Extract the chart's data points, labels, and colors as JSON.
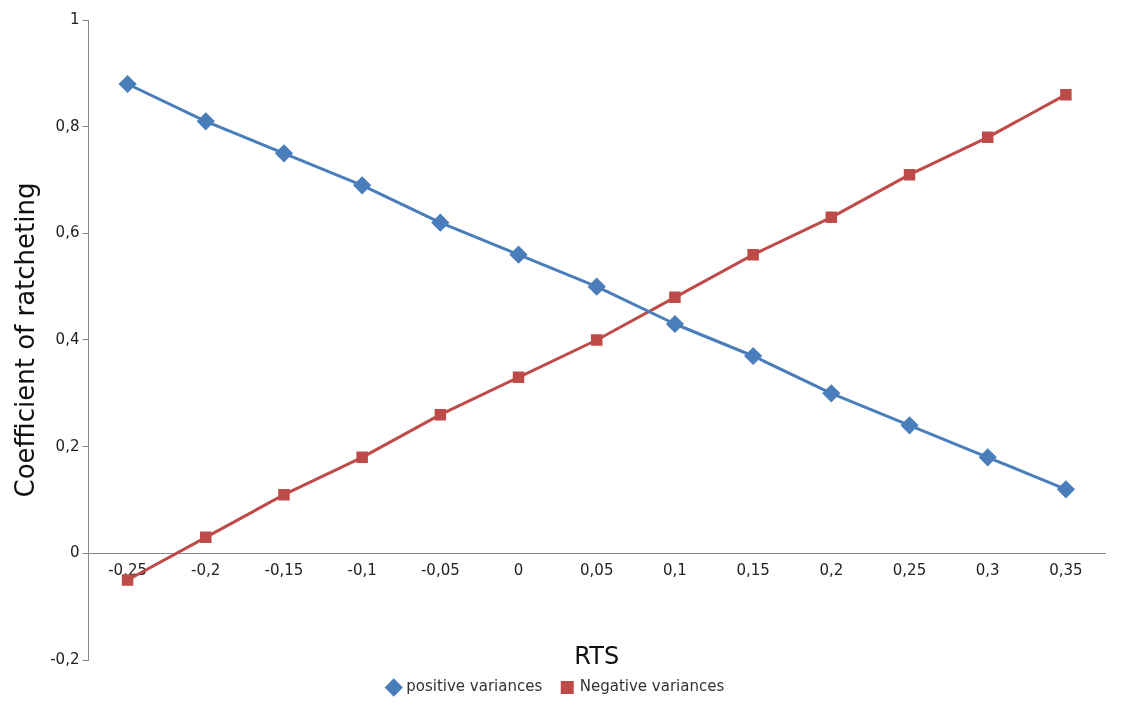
{
  "chart_data": {
    "type": "line",
    "xlabel": "RTS",
    "ylabel": "Coefficient of ratcheting",
    "categories": [
      "-0,25",
      "-0,2",
      "-0,15",
      "-0,1",
      "-0,05",
      "0",
      "0,05",
      "0,1",
      "0,15",
      "0,2",
      "0,25",
      "0,3",
      "0,35"
    ],
    "series": [
      {
        "name": "positive variances",
        "color": "#4a7ebb",
        "marker": "diamond",
        "values": [
          0.88,
          0.81,
          0.75,
          0.69,
          0.62,
          0.56,
          0.5,
          0.43,
          0.37,
          0.3,
          0.24,
          0.18,
          0.12
        ]
      },
      {
        "name": "Negative variances",
        "color": "#be4b48",
        "marker": "square",
        "values": [
          -0.05,
          0.03,
          0.11,
          0.18,
          0.26,
          0.33,
          0.4,
          0.48,
          0.56,
          0.63,
          0.71,
          0.78,
          0.86
        ]
      }
    ],
    "ylim": [
      -0.2,
      1
    ],
    "yticks": [
      {
        "value": -0.2,
        "label": "-0,2"
      },
      {
        "value": 0,
        "label": "0"
      },
      {
        "value": 0.2,
        "label": "0,2"
      },
      {
        "value": 0.4,
        "label": "0,4"
      },
      {
        "value": 0.6,
        "label": "0,6"
      },
      {
        "value": 0.8,
        "label": "0,8"
      },
      {
        "value": 1,
        "label": "1"
      }
    ],
    "grid": false,
    "legend": "bottom",
    "line_style": "solid"
  }
}
